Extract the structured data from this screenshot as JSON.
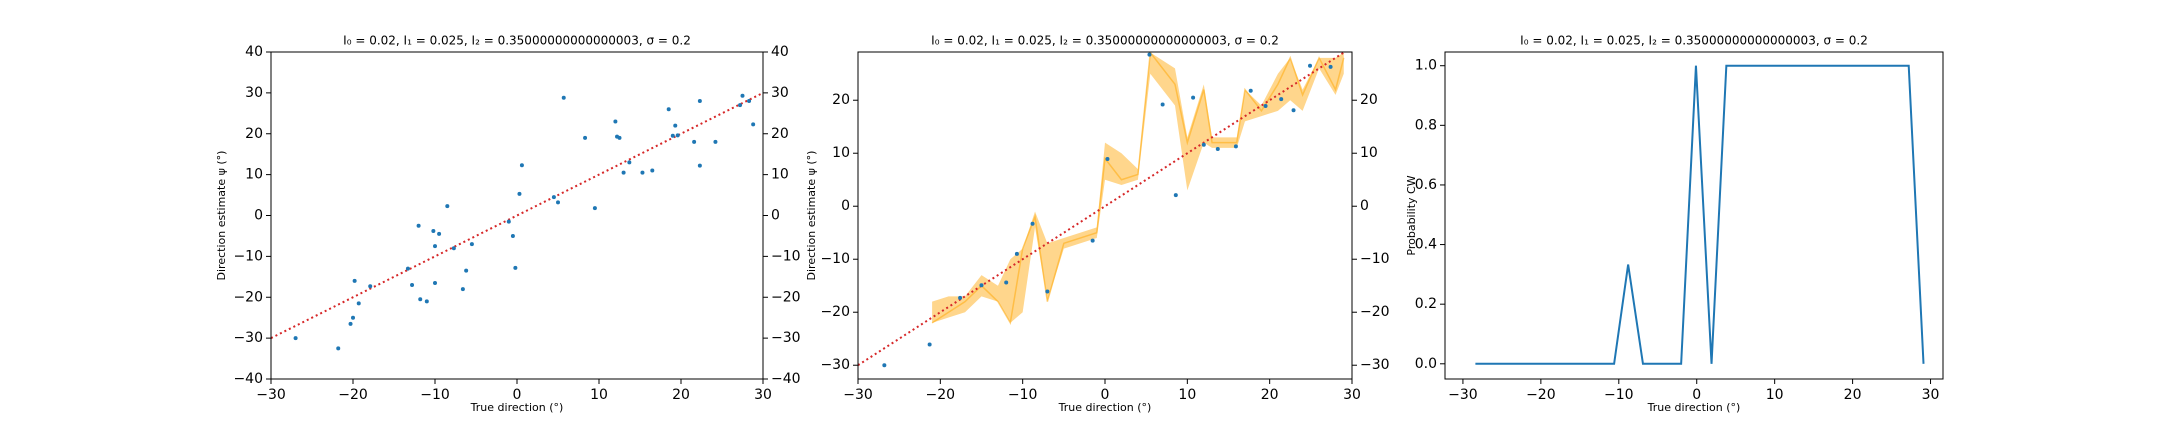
{
  "chart_data": [
    {
      "type": "scatter",
      "title": "I₀ = 0.02, I₁ = 0.025, I₂ = 0.35000000000000003, σ = 0.2",
      "xlabel": "True direction (°)",
      "ylabel": "Direction estimate ψ (°)",
      "xlim": [
        -30,
        30
      ],
      "ylim": [
        -40,
        40
      ],
      "y2lim": [
        -40,
        40
      ],
      "xticks": [
        {
          "value": -30,
          "label": "−30"
        },
        {
          "value": -20,
          "label": "−20"
        },
        {
          "value": -10,
          "label": "−10"
        },
        0,
        10,
        20,
        30
      ],
      "yticks": [
        {
          "value": -40,
          "label": "−40"
        },
        {
          "value": -30,
          "label": "−30"
        },
        {
          "value": -20,
          "label": "−20"
        },
        {
          "value": -10,
          "label": "−10"
        },
        0,
        10,
        20,
        30,
        40
      ],
      "y2ticks": [
        {
          "value": -40,
          "label": "−40"
        },
        {
          "value": -30,
          "label": "−30"
        },
        {
          "value": -20,
          "label": "−20"
        },
        {
          "value": -10,
          "label": "−10"
        },
        0,
        10,
        20,
        30,
        40
      ],
      "points": {
        "color": "#1f77b4",
        "x": [
          -27,
          -21.8,
          -20.3,
          -20,
          -19.8,
          -19.3,
          -17.9,
          -13.3,
          -12.8,
          -12,
          -11.8,
          -11,
          -10.2,
          -10,
          -10,
          -9.5,
          -8.5,
          -7.7,
          -6.6,
          -6.2,
          -5.5,
          -1,
          -0.5,
          -0.2,
          0.3,
          0.6,
          4.5,
          5,
          5.7,
          8.3,
          9.5,
          12,
          12.2,
          12.5,
          13,
          13.7,
          15.3,
          16.5,
          18.5,
          19,
          19.3,
          19.6,
          21.6,
          22.3,
          22.3,
          24.2,
          27.2,
          27.5,
          28.3,
          28.8
        ],
        "y": [
          -30,
          -32.5,
          -26.5,
          -25,
          -16,
          -21.5,
          -17.3,
          -13,
          -17,
          -2.5,
          -20.5,
          -21,
          -3.8,
          -16.5,
          -7.5,
          -4.5,
          2.3,
          -8,
          -18,
          -13.5,
          -7,
          -1.5,
          -5,
          -12.8,
          5.3,
          12.3,
          4.5,
          3.2,
          28.8,
          19,
          1.8,
          23,
          19.3,
          19,
          10.5,
          13,
          10.5,
          11,
          26,
          19.5,
          22,
          19.6,
          18,
          28,
          12.2,
          18,
          27,
          29.3,
          28,
          22.3
        ]
      },
      "reference_line": {
        "color": "#d62728",
        "x": [
          -30,
          30
        ],
        "y": [
          -30,
          30
        ]
      }
    },
    {
      "type": "scatter",
      "title": "I₀ = 0.02, I₁ = 0.025, I₂ = 0.35000000000000003, σ = 0.2",
      "xlabel": "True direction (°)",
      "ylabel": "Direction estimate ψ (°)",
      "xlim": [
        -30,
        30
      ],
      "ylim": [
        -32.6,
        29.1
      ],
      "y2lim": [
        -32.6,
        29.1
      ],
      "xticks": [
        {
          "value": -30,
          "label": "−30"
        },
        {
          "value": -20,
          "label": "−20"
        },
        {
          "value": -10,
          "label": "−10"
        },
        0,
        10,
        20,
        30
      ],
      "yticks": [
        {
          "value": -30,
          "label": "−30"
        },
        {
          "value": -20,
          "label": "−20"
        },
        {
          "value": -10,
          "label": "−10"
        },
        0,
        10,
        20
      ],
      "y2ticks": [
        {
          "value": -30,
          "label": "−30"
        },
        {
          "value": -20,
          "label": "−20"
        },
        {
          "value": -10,
          "label": "−10"
        },
        0,
        10,
        20
      ],
      "band": {
        "color": "#ffa500",
        "x": [
          -21,
          -19,
          -17,
          -15,
          -13,
          -11.5,
          -10,
          -8.5,
          -7,
          -5,
          -1,
          0,
          2,
          4,
          5.5,
          8.5,
          10,
          12,
          13,
          16,
          17,
          19,
          21,
          22.5,
          24,
          26,
          28,
          29
        ],
        "values": [
          -22,
          -20,
          -18,
          -15,
          -18,
          -22,
          -8,
          -2,
          -18,
          -7,
          -5,
          9,
          5,
          6,
          29,
          23,
          12,
          22,
          12,
          12,
          22,
          18,
          23,
          28,
          21,
          28,
          22,
          28
        ],
        "lower": [
          -22,
          -21,
          -20,
          -17,
          -18,
          -22,
          -20,
          -4,
          -18,
          -8,
          -6,
          5,
          4,
          5,
          25,
          19,
          3,
          12,
          11,
          11,
          16,
          17,
          18,
          20,
          18,
          26,
          21,
          25
        ],
        "upper": [
          -18,
          -17,
          -17,
          -13,
          -15,
          -10,
          -8,
          -1,
          -7,
          -6,
          -4,
          12,
          10,
          7,
          29,
          26,
          13,
          23,
          13,
          13,
          22,
          19,
          25,
          28,
          22,
          28,
          28,
          29
        ]
      },
      "points": {
        "color": "#1f77b4",
        "x": [
          -26.8,
          -21.3,
          -17.6,
          -15,
          -12,
          -10.7,
          -8.8,
          -7,
          -1.5,
          0.3,
          5.4,
          7,
          8.6,
          10.7,
          12,
          13.7,
          15.9,
          17.7,
          19.5,
          21.4,
          22.9,
          24.9,
          27.4
        ],
        "y": [
          -30,
          -26.1,
          -17.3,
          -14.9,
          -14.4,
          -9,
          -3.3,
          -16.1,
          -6.5,
          8.9,
          28.6,
          19.2,
          2.1,
          20.5,
          11.6,
          10.8,
          11.3,
          21.8,
          18.9,
          20.2,
          18.1,
          26.5,
          26.3
        ]
      },
      "reference_line": {
        "color": "#d62728",
        "x": [
          -30,
          30
        ],
        "y": [
          -30,
          30
        ]
      }
    },
    {
      "type": "line",
      "title": "I₀ = 0.02, I₁ = 0.025, I₂ = 0.35000000000000003, σ = 0.2",
      "xlabel": "True direction (°)",
      "ylabel": "Probability CW",
      "xlim": [
        -32.3,
        31.6
      ],
      "ylim": [
        -0.051,
        1.046
      ],
      "xticks": [
        {
          "value": -30,
          "label": "−30"
        },
        {
          "value": -20,
          "label": "−20"
        },
        {
          "value": -10,
          "label": "−10"
        },
        0,
        10,
        20,
        30
      ],
      "yticks": [
        {
          "value": 0,
          "label": "0.0"
        },
        0.2,
        0.4,
        0.6,
        0.8,
        {
          "value": 1,
          "label": "1.0"
        }
      ],
      "color": "#1f77b4",
      "x": [
        -28.4,
        -10.6,
        -8.8,
        -6.9,
        -2.0,
        -0.1,
        1.9,
        3.8,
        27.2,
        29.1
      ],
      "values": [
        0,
        0,
        0.333,
        0,
        0,
        1,
        0,
        1,
        1,
        0
      ]
    }
  ]
}
